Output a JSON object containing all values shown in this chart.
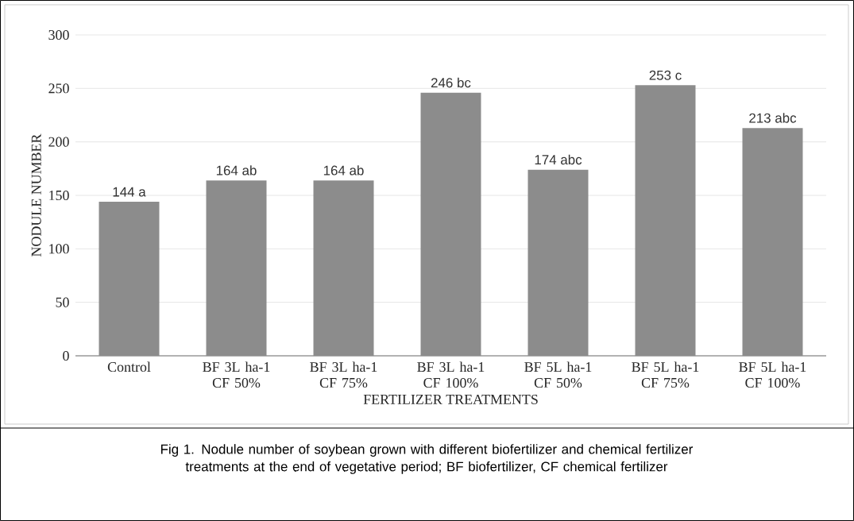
{
  "chart_data": {
    "type": "bar",
    "categories": [
      "Control",
      "BF 3L ha-1 CF 50%",
      "BF 3L ha-1 CF 75%",
      "BF 3L ha-1 CF 100%",
      "BF 5L ha-1 CF 50%",
      "BF 5L ha-1 CF 75%",
      "BF 5L ha-1 CF 100%"
    ],
    "values": [
      144,
      164,
      164,
      246,
      174,
      253,
      213
    ],
    "value_labels": [
      "144 a",
      "164 ab",
      "164 ab",
      "246 bc",
      "174 abc",
      "253 c",
      "213 abc"
    ],
    "color": "#8c8c8c",
    "xlabel": "FERTILIZER TREATMENTS",
    "ylabel": "NODULE NUMBER",
    "ylim": [
      0,
      300
    ],
    "yticks": [
      0,
      50,
      100,
      150,
      200,
      250,
      300
    ],
    "grid": "y",
    "annotations": [
      "Fig 1. Nodule number of soybean grown with different biofertilizer and chemical fertilizer treatments at the end of vegetative period; BF biofertilizer, CF chemical fertilizer"
    ]
  }
}
